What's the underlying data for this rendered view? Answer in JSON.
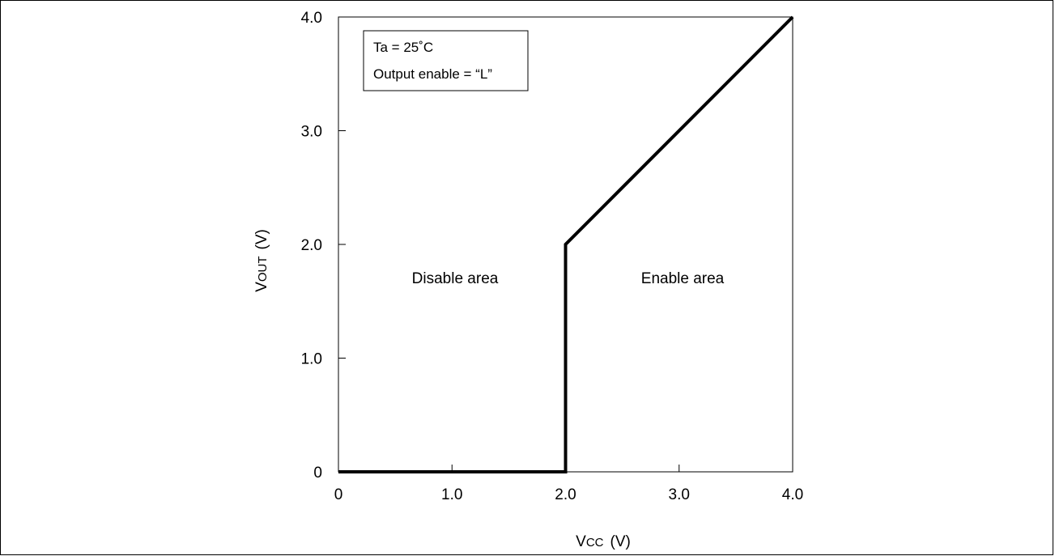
{
  "chart_data": {
    "type": "line",
    "x": [
      0,
      2.0,
      2.0,
      4.0
    ],
    "y": [
      0,
      0,
      2.0,
      4.0
    ],
    "xlim": [
      0,
      4.0
    ],
    "ylim": [
      0,
      4.0
    ],
    "xticks": [
      0,
      1.0,
      2.0,
      3.0,
      4.0
    ],
    "yticks": [
      0,
      1.0,
      2.0,
      3.0,
      4.0
    ],
    "xtick_labels": [
      "0",
      "1.0",
      "2.0",
      "3.0",
      "4.0"
    ],
    "ytick_labels": [
      "0",
      "1.0",
      "2.0",
      "3.0",
      "4.0"
    ],
    "xlabel_main": "V",
    "xlabel_sub": "CC",
    "xlabel_unit": "(V)",
    "ylabel_main": "V",
    "ylabel_sub": "OUT",
    "ylabel_unit": "(V)",
    "grid": false,
    "annotations": {
      "condition_line1": "Ta = 25˚C",
      "condition_line2": "Output enable = “L”",
      "disable_area": "Disable area",
      "enable_area": "Enable area"
    }
  }
}
